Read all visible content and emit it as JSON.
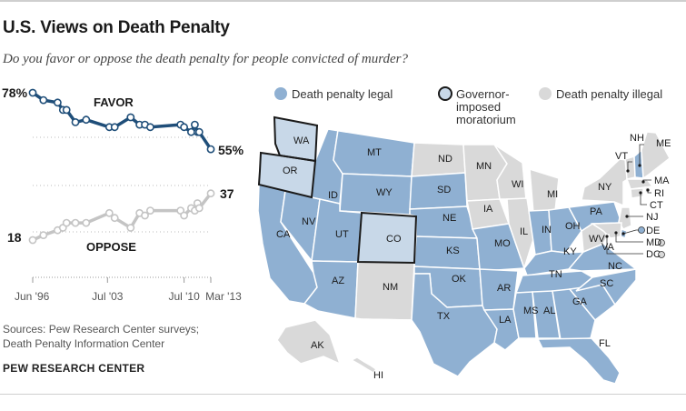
{
  "title": "U.S. Views on Death Penalty",
  "subtitle": "Do you favor or oppose the death penalty for people convicted of murder?",
  "chart_data": {
    "type": "line",
    "x": [
      "Jun '96",
      "Feb '97",
      "Sep '98",
      "Feb '99",
      "Jul '99",
      "Mar '00",
      "Jun '01",
      "Jul '03",
      "Jan '04",
      "Jul '05",
      "Jul '06",
      "Jan '07",
      "Jul '07",
      "Apr '10",
      "Jul '10",
      "Apr '11",
      "Sep '11",
      "Dec '11",
      "Jan '12",
      "Mar '13"
    ],
    "series": [
      {
        "name": "FAVOR",
        "values": [
          78,
          75,
          74,
          71,
          71,
          66,
          67,
          64,
          64,
          68,
          65,
          65,
          64,
          65,
          64,
          62,
          65,
          62,
          62,
          55
        ]
      },
      {
        "name": "OPPOSE",
        "values": [
          18,
          20,
          22,
          23,
          25,
          25,
          25,
          29,
          27,
          23,
          29,
          28,
          30,
          30,
          28,
          31,
          30,
          33,
          31,
          37
        ]
      }
    ],
    "start_labels": [
      "78%",
      "18"
    ],
    "end_labels": [
      "55%",
      "37"
    ],
    "tick_labels": [
      "Jun '96",
      "Jul '03",
      "Jul '10",
      "Mar '13"
    ]
  },
  "legend": {
    "legal": "Death penalty legal",
    "moratorium": "Governor-imposed moratorium",
    "moratorium_lines": [
      "Governor-",
      "imposed",
      "moratorium"
    ],
    "illegal": "Death penalty illegal"
  },
  "colors": {
    "legal": "#8fb0d2",
    "moratorium": "#c8d8e8",
    "illegal": "#d9d9d9",
    "favor": "#1f4e79",
    "oppose": "#c4c4c4"
  },
  "states": [
    {
      "abbr": "WA",
      "status": "moratorium"
    },
    {
      "abbr": "OR",
      "status": "moratorium"
    },
    {
      "abbr": "CA",
      "status": "legal"
    },
    {
      "abbr": "NV",
      "status": "legal"
    },
    {
      "abbr": "ID",
      "status": "legal"
    },
    {
      "abbr": "MT",
      "status": "legal"
    },
    {
      "abbr": "WY",
      "status": "legal"
    },
    {
      "abbr": "UT",
      "status": "legal"
    },
    {
      "abbr": "AZ",
      "status": "legal"
    },
    {
      "abbr": "CO",
      "status": "moratorium"
    },
    {
      "abbr": "NM",
      "status": "illegal"
    },
    {
      "abbr": "ND",
      "status": "illegal"
    },
    {
      "abbr": "SD",
      "status": "legal"
    },
    {
      "abbr": "NE",
      "status": "legal"
    },
    {
      "abbr": "KS",
      "status": "legal"
    },
    {
      "abbr": "OK",
      "status": "legal"
    },
    {
      "abbr": "TX",
      "status": "legal"
    },
    {
      "abbr": "MN",
      "status": "illegal"
    },
    {
      "abbr": "IA",
      "status": "illegal"
    },
    {
      "abbr": "MO",
      "status": "legal"
    },
    {
      "abbr": "AR",
      "status": "legal"
    },
    {
      "abbr": "LA",
      "status": "legal"
    },
    {
      "abbr": "WI",
      "status": "illegal"
    },
    {
      "abbr": "IL",
      "status": "illegal"
    },
    {
      "abbr": "MI",
      "status": "illegal"
    },
    {
      "abbr": "IN",
      "status": "legal"
    },
    {
      "abbr": "OH",
      "status": "legal"
    },
    {
      "abbr": "KY",
      "status": "legal"
    },
    {
      "abbr": "TN",
      "status": "legal"
    },
    {
      "abbr": "MS",
      "status": "legal"
    },
    {
      "abbr": "AL",
      "status": "legal"
    },
    {
      "abbr": "GA",
      "status": "legal"
    },
    {
      "abbr": "FL",
      "status": "legal"
    },
    {
      "abbr": "SC",
      "status": "legal"
    },
    {
      "abbr": "NC",
      "status": "legal"
    },
    {
      "abbr": "VA",
      "status": "legal"
    },
    {
      "abbr": "WV",
      "status": "illegal"
    },
    {
      "abbr": "PA",
      "status": "legal"
    },
    {
      "abbr": "NY",
      "status": "illegal"
    },
    {
      "abbr": "VT",
      "status": "illegal"
    },
    {
      "abbr": "NH",
      "status": "legal"
    },
    {
      "abbr": "ME",
      "status": "illegal"
    },
    {
      "abbr": "MA",
      "status": "illegal"
    },
    {
      "abbr": "RI",
      "status": "illegal"
    },
    {
      "abbr": "CT",
      "status": "illegal"
    },
    {
      "abbr": "NJ",
      "status": "illegal"
    },
    {
      "abbr": "DE",
      "status": "legal"
    },
    {
      "abbr": "MD",
      "status": "illegal"
    },
    {
      "abbr": "DC",
      "status": "illegal"
    },
    {
      "abbr": "AK",
      "status": "illegal"
    },
    {
      "abbr": "HI",
      "status": "illegal"
    }
  ],
  "sources": [
    "Sources: Pew Research Center surveys;",
    "Death Penalty Information Center"
  ],
  "org": "PEW RESEARCH CENTER"
}
